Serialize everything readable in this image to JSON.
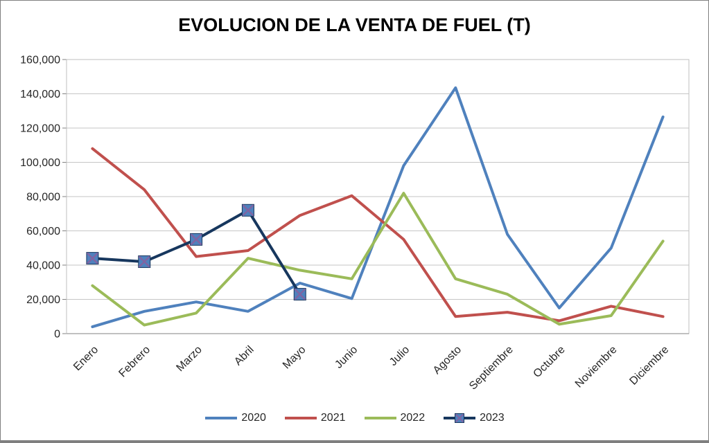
{
  "window": {
    "background": "#ffffff",
    "border_color": "#7f7f7f"
  },
  "chart_data": {
    "type": "line",
    "title": "EVOLUCION DE LA VENTA DE FUEL (T)",
    "xlabel": "",
    "ylabel": "",
    "ylim": [
      0,
      160000
    ],
    "ytick_step": 20000,
    "ytick_labels": [
      "0",
      "20,000",
      "40,000",
      "60,000",
      "80,000",
      "100,000",
      "120,000",
      "140,000",
      "160,000"
    ],
    "grid": "horizontal",
    "gridline_color": "#c6c6c6",
    "plot_border_color": "#bfbfbf",
    "axis_line_color": "#9b9b9b",
    "legend_position": "bottom",
    "categories": [
      "Enero",
      "Febrero",
      "Marzo",
      "Abril",
      "Mayo",
      "Junio",
      "Julio",
      "Agosto",
      "Septiembre",
      "Octubre",
      "Noviembre",
      "Diciembre"
    ],
    "series": [
      {
        "name": "2020",
        "color": "#4f81bd",
        "marker": "none",
        "values": [
          4000,
          13000,
          18500,
          13000,
          29500,
          20500,
          98000,
          143500,
          58000,
          15000,
          50000,
          126500
        ]
      },
      {
        "name": "2021",
        "color": "#c0504d",
        "marker": "none",
        "values": [
          108000,
          84000,
          45000,
          48500,
          69000,
          80500,
          55000,
          10000,
          12500,
          7500,
          16000,
          10000
        ]
      },
      {
        "name": "2022",
        "color": "#9bbb59",
        "marker": "none",
        "values": [
          28000,
          5000,
          12000,
          44000,
          37000,
          32000,
          82000,
          32000,
          23000,
          5500,
          10500,
          54000
        ]
      },
      {
        "name": "2023",
        "color": "#17375e",
        "marker": "square-x",
        "marker_fill": "#4f81bd",
        "marker_x_color": "#8064a2",
        "values": [
          44000,
          42000,
          55000,
          72000,
          23000
        ]
      }
    ]
  }
}
